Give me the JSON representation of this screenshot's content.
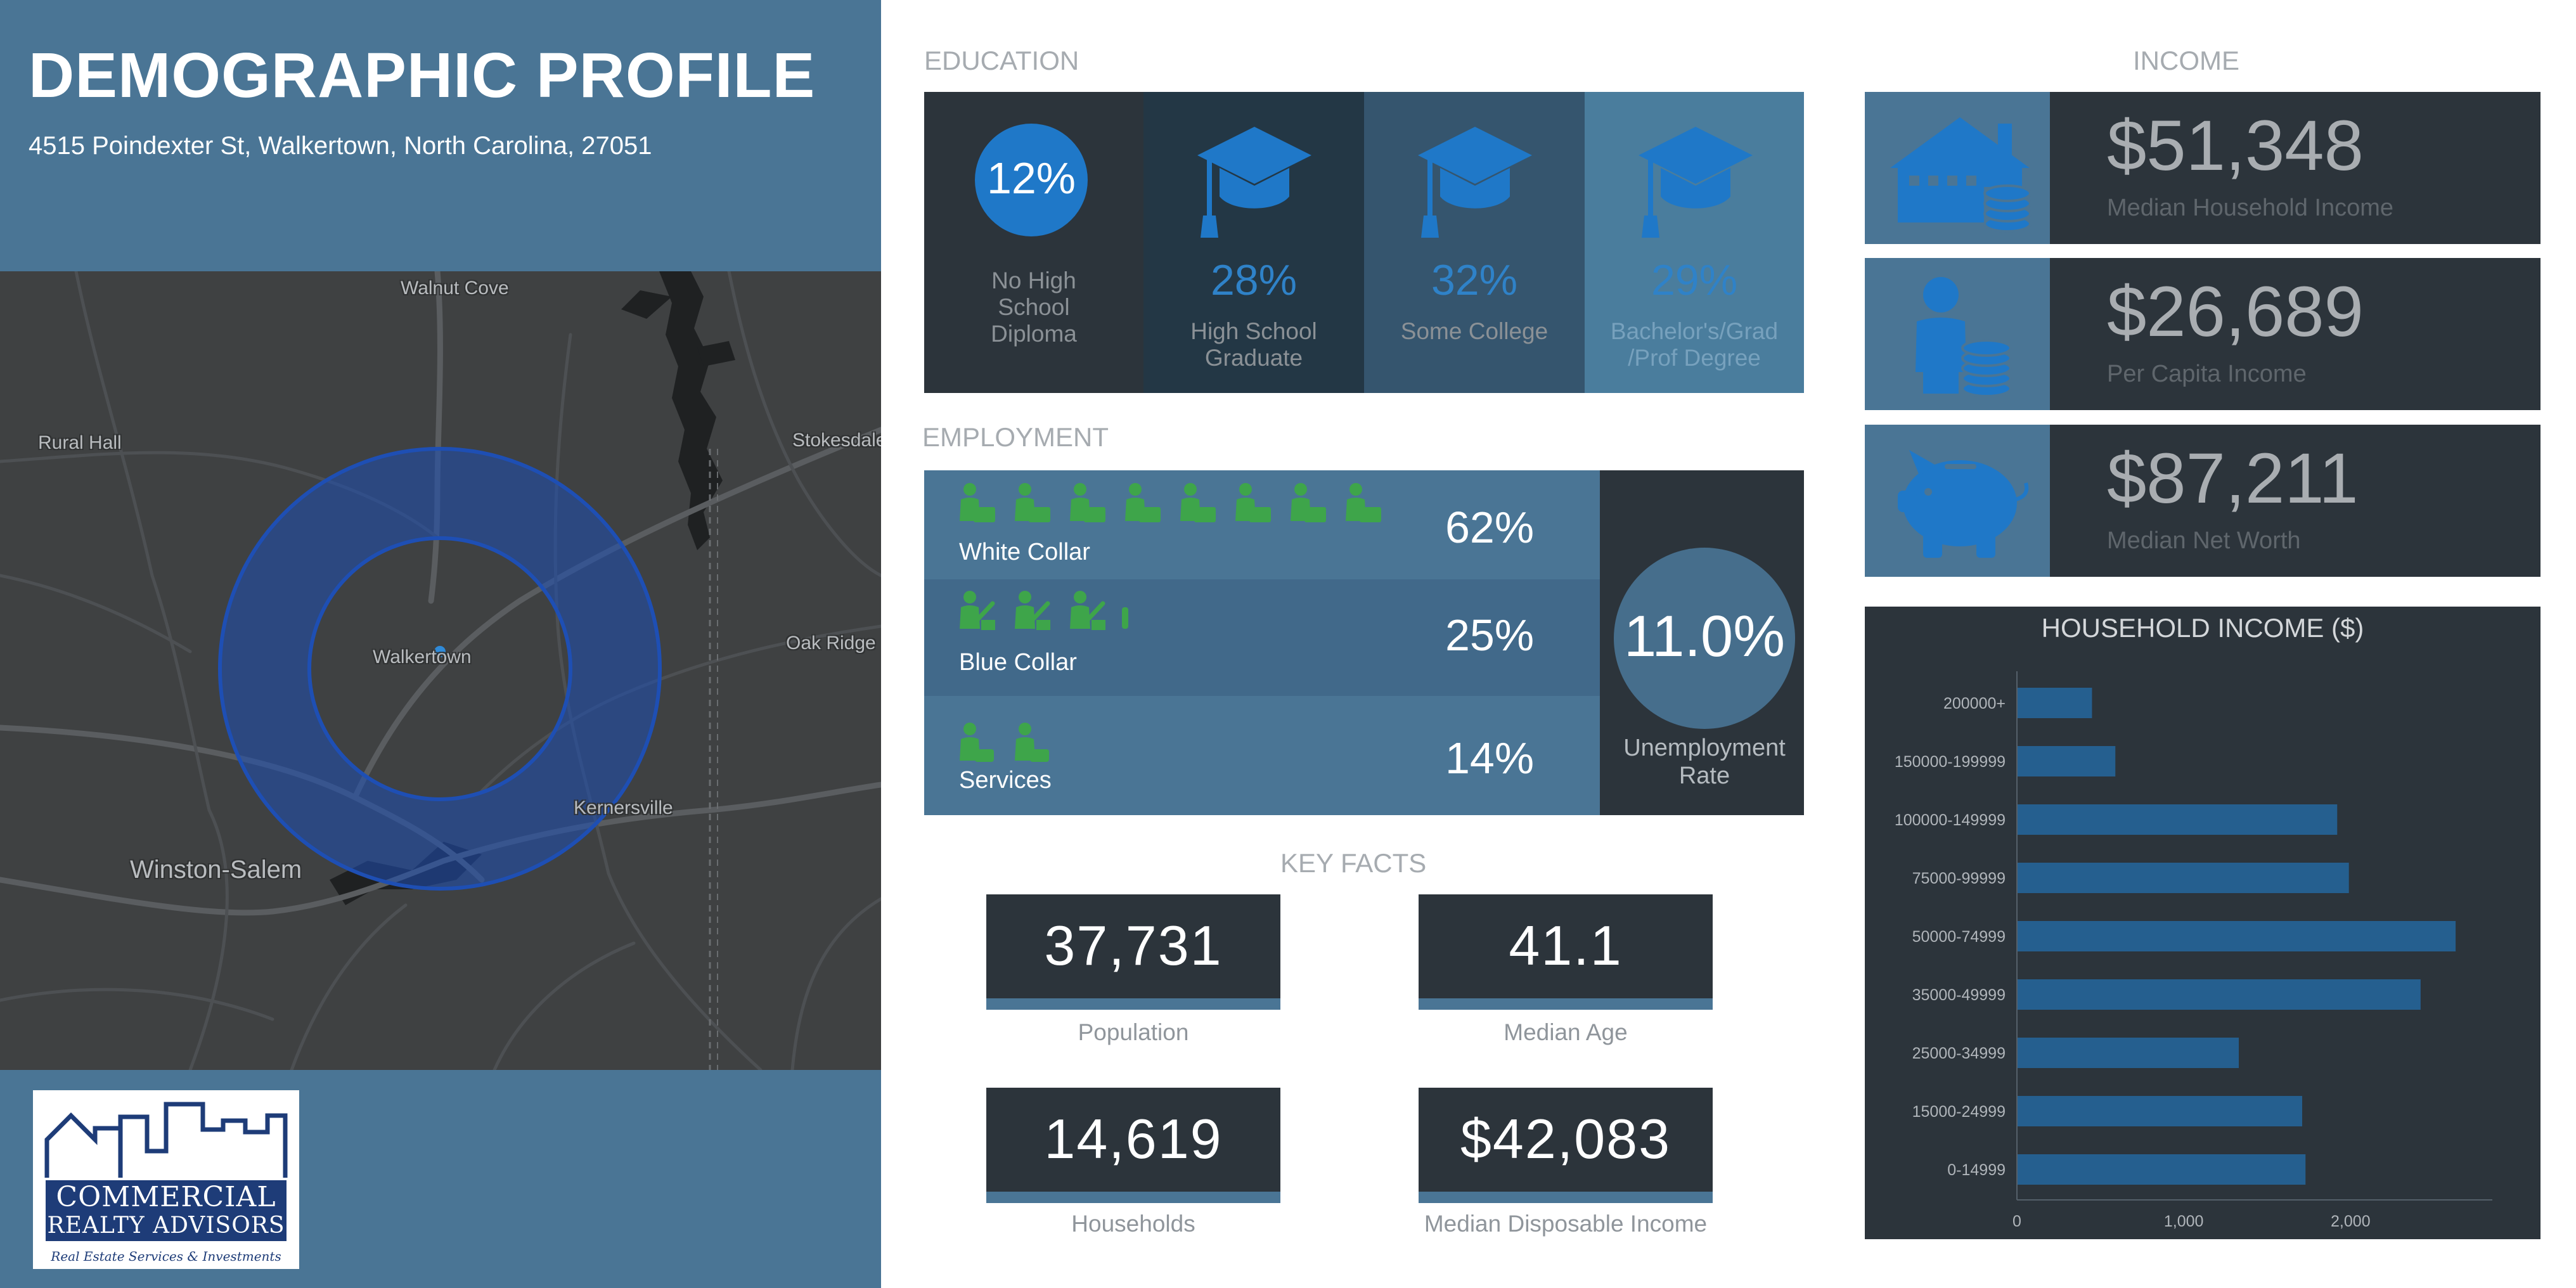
{
  "header": {
    "title": "DEMOGRAPHIC PROFILE",
    "address": "4515 Poindexter St, Walkertown, North Carolina, 27051"
  },
  "map": {
    "labels": [
      "Walnut Cove",
      "Rural Hall",
      "Stokesdale",
      "Walkertown",
      "Oak Ridge",
      "Kernersville",
      "Winston-Salem"
    ],
    "ring_color": "#1e4fb4"
  },
  "logo": {
    "line1": "COMMERCIAL",
    "line2": "REALTY ADVISORS",
    "tagline": "Real Estate Services & Investments"
  },
  "education": {
    "title": "EDUCATION",
    "items": [
      {
        "pct": "12%",
        "label": [
          "No High",
          "School",
          "Diploma"
        ]
      },
      {
        "pct": "28%",
        "label": [
          "High School",
          "Graduate"
        ]
      },
      {
        "pct": "32%",
        "label": [
          "Some College"
        ]
      },
      {
        "pct": "29%",
        "label": [
          "Bachelor's/Grad",
          "/Prof Degree"
        ]
      }
    ]
  },
  "employment": {
    "title": "EMPLOYMENT",
    "rows": [
      {
        "label": "White Collar",
        "pct": "62%"
      },
      {
        "label": "Blue Collar",
        "pct": "25%"
      },
      {
        "label": "Services",
        "pct": "14%"
      }
    ],
    "unemployment": {
      "value": "11.0%",
      "label": [
        "Unemployment",
        "Rate"
      ]
    },
    "icon_color": "#3ea54a"
  },
  "key_facts": {
    "title": "KEY FACTS",
    "items": [
      {
        "value": "37,731",
        "label": "Population"
      },
      {
        "value": "41.1",
        "label": "Median Age"
      },
      {
        "value": "14,619",
        "label": "Households"
      },
      {
        "value": "$42,083",
        "label": "Median Disposable Income"
      }
    ]
  },
  "income": {
    "title": "INCOME",
    "items": [
      {
        "value": "$51,348",
        "label": "Median Household Income",
        "icon": "house-coins-icon"
      },
      {
        "value": "$26,689",
        "label": "Per Capita Income",
        "icon": "person-coins-icon"
      },
      {
        "value": "$87,211",
        "label": "Median Net Worth",
        "icon": "piggy-bank-icon"
      }
    ]
  },
  "chart_data": {
    "type": "bar",
    "orientation": "horizontal",
    "title": "HOUSEHOLD INCOME ($)",
    "categories": [
      "200000+",
      "150000-199999",
      "100000-149999",
      "75000-99999",
      "50000-74999",
      "35000-49999",
      "25000-34999",
      "15000-24999",
      "0-14999"
    ],
    "values": [
      450,
      590,
      1920,
      1990,
      2630,
      2420,
      1330,
      1710,
      1730
    ],
    "xlim": [
      0,
      2850
    ],
    "xticks": [
      0,
      1000,
      2000
    ],
    "xtick_labels": [
      "0",
      "1,000",
      "2,000"
    ],
    "bar_color": "#255f8f"
  }
}
